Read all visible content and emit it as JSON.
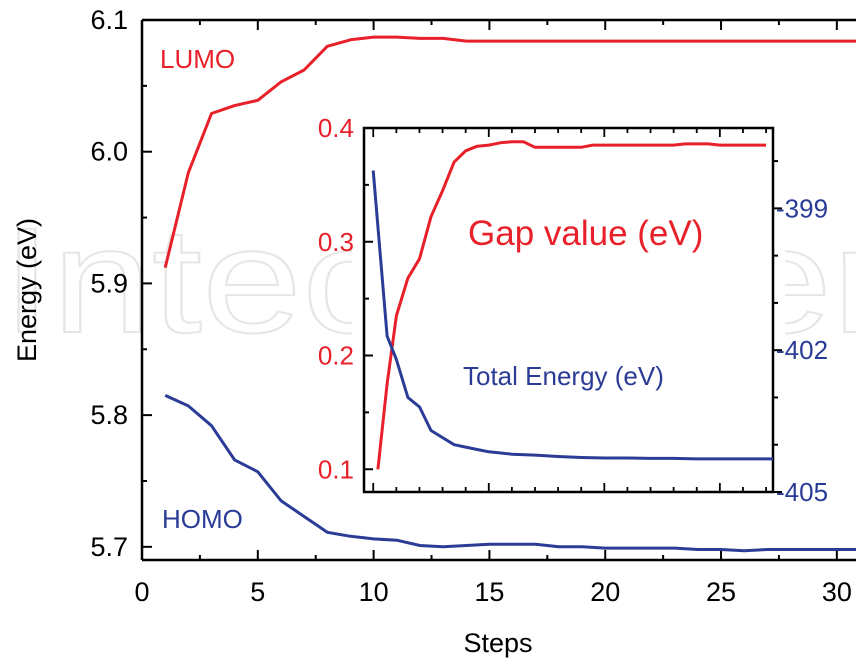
{
  "watermark": {
    "text": "IntechOpen"
  },
  "colors": {
    "red": "#e8202a",
    "blue": "#2b3c96",
    "axis": "#000000",
    "watermark": "#e6e6e6"
  },
  "chart_data": [
    {
      "type": "line",
      "role": "main",
      "title": "",
      "xlabel": "Steps",
      "ylabel": "Energy (eV)",
      "xlim": [
        0,
        31
      ],
      "ylim": [
        5.69,
        6.1
      ],
      "xticks": [
        0,
        5,
        10,
        15,
        20,
        25,
        30
      ],
      "xtick_labels": [
        "0",
        "5",
        "10",
        "15",
        "20",
        "25",
        "30"
      ],
      "yticks": [
        5.7,
        5.8,
        5.9,
        6.0,
        6.1
      ],
      "ytick_labels": [
        "5.7",
        "5.8",
        "5.9",
        "6.0",
        "6.1"
      ],
      "series": [
        {
          "name": "LUMO",
          "color": "#e8202a",
          "x": [
            1,
            2,
            3,
            4,
            5,
            6,
            7,
            8,
            9,
            10,
            11,
            12,
            13,
            14,
            15,
            16,
            17,
            18,
            19,
            20,
            21,
            22,
            23,
            24,
            25,
            26,
            27,
            28,
            29,
            30,
            31
          ],
          "y": [
            5.912,
            5.984,
            6.029,
            6.035,
            6.039,
            6.053,
            6.062,
            6.08,
            6.085,
            6.087,
            6.087,
            6.086,
            6.086,
            6.084,
            6.084,
            6.084,
            6.084,
            6.084,
            6.084,
            6.084,
            6.084,
            6.084,
            6.084,
            6.084,
            6.084,
            6.084,
            6.084,
            6.084,
            6.084,
            6.084,
            6.084
          ]
        },
        {
          "name": "HOMO",
          "color": "#2b3c96",
          "x": [
            1,
            2,
            3,
            4,
            5,
            6,
            7,
            8,
            9,
            10,
            11,
            12,
            13,
            14,
            15,
            16,
            17,
            18,
            19,
            20,
            21,
            22,
            23,
            24,
            25,
            26,
            27,
            28,
            29,
            30,
            31
          ],
          "y": [
            5.815,
            5.807,
            5.792,
            5.766,
            5.757,
            5.735,
            5.723,
            5.711,
            5.708,
            5.706,
            5.705,
            5.701,
            5.7,
            5.701,
            5.702,
            5.702,
            5.702,
            5.7,
            5.7,
            5.699,
            5.699,
            5.699,
            5.699,
            5.698,
            5.698,
            5.697,
            5.698,
            5.698,
            5.698,
            5.698,
            5.698
          ]
        }
      ]
    },
    {
      "type": "line",
      "role": "inset",
      "title": "",
      "xlim": [
        9.6,
        27.3
      ],
      "ylim_left": [
        0.08,
        0.4
      ],
      "ylim_right": [
        -405.0,
        -397.3
      ],
      "yticks_left": [
        0.1,
        0.2,
        0.3,
        0.4
      ],
      "ytick_labels_left": [
        "0.1",
        "0.2",
        "0.3",
        "0.4"
      ],
      "yticks_right": [
        -399,
        -402,
        -405
      ],
      "ytick_labels_right": [
        "-399",
        "-402",
        "-405"
      ],
      "series": [
        {
          "name": "Gap value (eV)",
          "axis": "left",
          "color": "#e8202a",
          "x": [
            10.2,
            10.6,
            11.0,
            11.5,
            12.0,
            12.5,
            13.0,
            13.5,
            14.0,
            14.5,
            15.0,
            15.5,
            16.0,
            16.5,
            17.0,
            17.5,
            18.0,
            18.5,
            19.0,
            19.5,
            20.0,
            20.5,
            21.0,
            21.5,
            22.0,
            22.5,
            23.0,
            23.5,
            24.0,
            24.5,
            25.0,
            25.5,
            26.0,
            26.5,
            27.0
          ],
          "y": [
            0.1,
            0.175,
            0.235,
            0.268,
            0.285,
            0.322,
            0.345,
            0.37,
            0.38,
            0.384,
            0.385,
            0.387,
            0.388,
            0.388,
            0.383,
            0.383,
            0.383,
            0.383,
            0.383,
            0.385,
            0.385,
            0.385,
            0.385,
            0.385,
            0.385,
            0.385,
            0.385,
            0.386,
            0.386,
            0.386,
            0.385,
            0.385,
            0.385,
            0.385,
            0.385
          ]
        },
        {
          "name": "Total Energy (eV)",
          "axis": "right",
          "color": "#2b3c96",
          "x": [
            10.0,
            10.6,
            11.0,
            11.5,
            12.0,
            12.5,
            13.0,
            13.5,
            14.0,
            14.5,
            15.0,
            16.0,
            17.0,
            18.0,
            19.0,
            20.0,
            21.0,
            22.0,
            23.0,
            24.0,
            25.0,
            26.0,
            27.0,
            27.3
          ],
          "y": [
            -398.2,
            -401.7,
            -402.2,
            -403.0,
            -403.2,
            -403.7,
            -403.85,
            -404.0,
            -404.05,
            -404.1,
            -404.15,
            -404.2,
            -404.22,
            -404.25,
            -404.27,
            -404.28,
            -404.28,
            -404.29,
            -404.29,
            -404.3,
            -404.3,
            -404.3,
            -404.3,
            -404.3
          ]
        }
      ]
    }
  ]
}
